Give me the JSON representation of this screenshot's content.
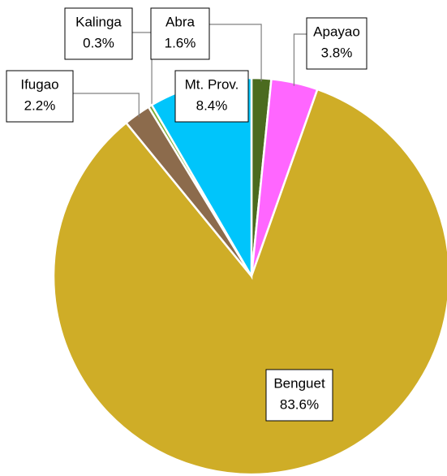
{
  "chart_data": {
    "type": "pie",
    "categories": [
      "Abra",
      "Apayao",
      "Benguet",
      "Ifugao",
      "Kalinga",
      "Mt. Prov."
    ],
    "values": [
      1.6,
      3.8,
      83.6,
      2.2,
      0.3,
      8.4
    ],
    "value_labels": [
      "1.6%",
      "3.8%",
      "83.6%",
      "2.2%",
      "0.3%",
      "8.4%"
    ],
    "colors": [
      "#4b6b1f",
      "#ff66ff",
      "#cfad27",
      "#8c6b4c",
      "#7cac33",
      "#00c5fb"
    ]
  }
}
